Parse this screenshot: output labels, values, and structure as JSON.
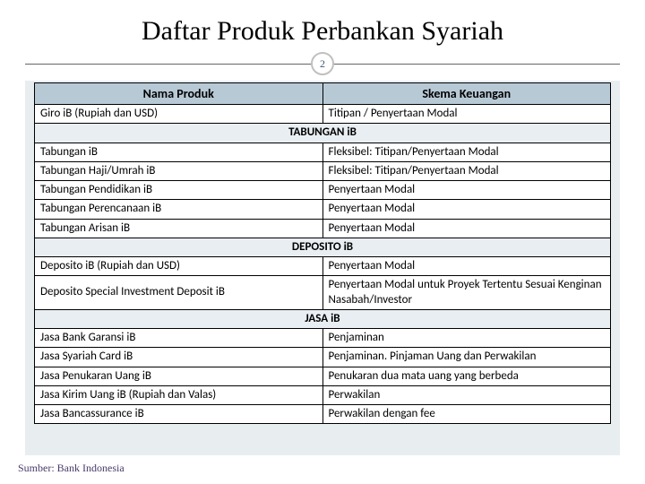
{
  "title": "Daftar Produk Perbankan Syariah",
  "page_number": "2",
  "source": "Sumber: Bank Indonesia",
  "colors": {
    "background": "#ffffff",
    "content_bg": "#e8edf0",
    "header_bg": "#b8c9d6",
    "section_bg": "#e8eef2",
    "border": "#000000",
    "title_text": "#000000",
    "badge_border": "#c0c0c0",
    "source_text": "#4a3a6a"
  },
  "table": {
    "columns": [
      "Nama Produk",
      "Skema Keuangan"
    ],
    "rows": [
      {
        "type": "data",
        "cells": [
          "Giro iB (Rupiah dan USD)",
          "Titipan / Penyertaan Modal"
        ]
      },
      {
        "type": "section",
        "label": "TABUNGAN iB"
      },
      {
        "type": "data",
        "cells": [
          "Tabungan iB",
          "Fleksibel: Titipan/Penyertaan Modal"
        ]
      },
      {
        "type": "data",
        "cells": [
          "Tabungan Haji/Umrah iB",
          "Fleksibel: Titipan/Penyertaan Modal"
        ]
      },
      {
        "type": "data",
        "cells": [
          "Tabungan Pendidikan iB",
          "Penyertaan Modal"
        ]
      },
      {
        "type": "data",
        "cells": [
          "Tabungan Perencanaan iB",
          "Penyertaan Modal"
        ]
      },
      {
        "type": "data",
        "cells": [
          "Tabungan Arisan iB",
          "Penyertaan Modal"
        ]
      },
      {
        "type": "section",
        "label": "DEPOSITO iB"
      },
      {
        "type": "data",
        "cells": [
          "Deposito iB (Rupiah dan USD)",
          "Penyertaan Modal"
        ]
      },
      {
        "type": "data",
        "cells": [
          "Deposito Special Investment Deposit iB",
          "Penyertaan Modal untuk Proyek Tertentu Sesuai Kenginan Nasabah/Investor"
        ]
      },
      {
        "type": "section",
        "label": "JASA iB"
      },
      {
        "type": "data",
        "cells": [
          "Jasa Bank Garansi iB",
          "Penjaminan"
        ]
      },
      {
        "type": "data",
        "cells": [
          "Jasa Syariah Card iB",
          "Penjaminan. Pinjaman Uang dan Perwakilan"
        ]
      },
      {
        "type": "data",
        "cells": [
          "Jasa Penukaran Uang iB",
          "Penukaran dua mata uang yang berbeda"
        ]
      },
      {
        "type": "data",
        "cells": [
          "Jasa Kirim Uang iB (Rupiah dan Valas)",
          "Perwakilan"
        ]
      },
      {
        "type": "data",
        "cells": [
          "Jasa Bancassurance iB",
          "Perwakilan dengan fee"
        ]
      }
    ]
  }
}
